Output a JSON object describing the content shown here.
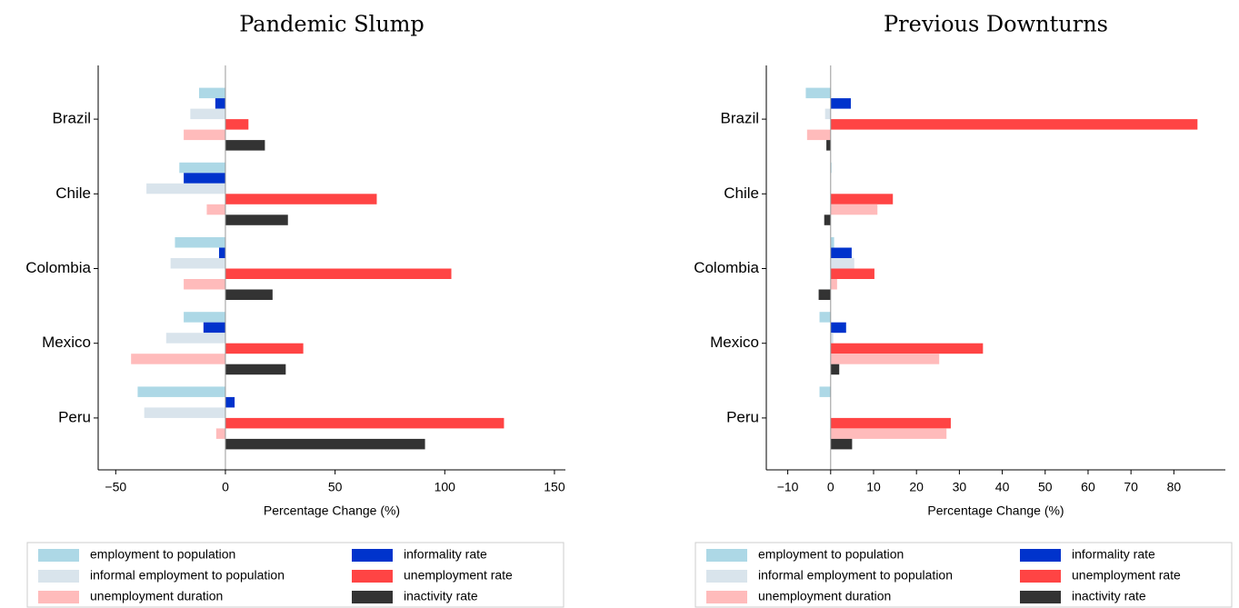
{
  "chart_data": [
    {
      "type": "hbar",
      "title": "Pandemic Slump",
      "x_label": "Percentage Change (%)",
      "categories": [
        "Brazil",
        "Chile",
        "Colombia",
        "Mexico",
        "Peru"
      ],
      "xlim": [
        -58,
        155
      ],
      "xticks": [
        {
          "value": -50,
          "label": "−50"
        },
        0,
        50,
        100,
        150
      ],
      "series": [
        {
          "name": "employment to population",
          "color": "#add8e6",
          "values": [
            -12,
            -21,
            -23,
            -19,
            -40
          ]
        },
        {
          "name": "informality rate",
          "color": "#0033cc",
          "values": [
            -4.6,
            -19,
            -2.9,
            -10,
            4.2
          ]
        },
        {
          "name": "informal employment to population",
          "color": "#d9e4ec",
          "values": [
            -16,
            -36,
            -25,
            -27,
            -37
          ]
        },
        {
          "name": "unemployment rate",
          "color": "#ff4444",
          "values": [
            10.5,
            69,
            103,
            35.5,
            127
          ]
        },
        {
          "name": "unemployment duration",
          "color": "#ffbbbb",
          "values": [
            -19,
            -8.5,
            -19,
            -43,
            -4.2
          ]
        },
        {
          "name": "inactivity rate",
          "color": "#333333",
          "values": [
            18,
            28.5,
            21.5,
            27.5,
            91
          ]
        }
      ]
    },
    {
      "type": "hbar",
      "title": "Previous Downturns",
      "x_label": "Percentage Change (%)",
      "categories": [
        "Brazil",
        "Chile",
        "Colombia",
        "Mexico",
        "Peru"
      ],
      "xlim": [
        -15,
        92
      ],
      "xticks": [
        {
          "value": -10,
          "label": "−10"
        },
        0,
        10,
        20,
        30,
        40,
        50,
        60,
        70,
        80
      ],
      "series": [
        {
          "name": "employment to population",
          "color": "#add8e6",
          "values": [
            -5.8,
            0.2,
            0.8,
            -2.6,
            -2.6
          ]
        },
        {
          "name": "informality rate",
          "color": "#0033cc",
          "values": [
            4.7,
            0,
            4.9,
            3.6,
            0
          ]
        },
        {
          "name": "informal employment to population",
          "color": "#d9e4ec",
          "values": [
            -1.3,
            0,
            5.5,
            0.6,
            0
          ]
        },
        {
          "name": "unemployment rate",
          "color": "#ff4444",
          "values": [
            85.5,
            14.5,
            10.2,
            35.5,
            28
          ]
        },
        {
          "name": "unemployment duration",
          "color": "#ffbbbb",
          "values": [
            -5.5,
            10.9,
            1.5,
            25.3,
            27
          ]
        },
        {
          "name": "inactivity rate",
          "color": "#333333",
          "values": [
            -1,
            -1.5,
            -2.8,
            2,
            5
          ]
        }
      ]
    }
  ]
}
